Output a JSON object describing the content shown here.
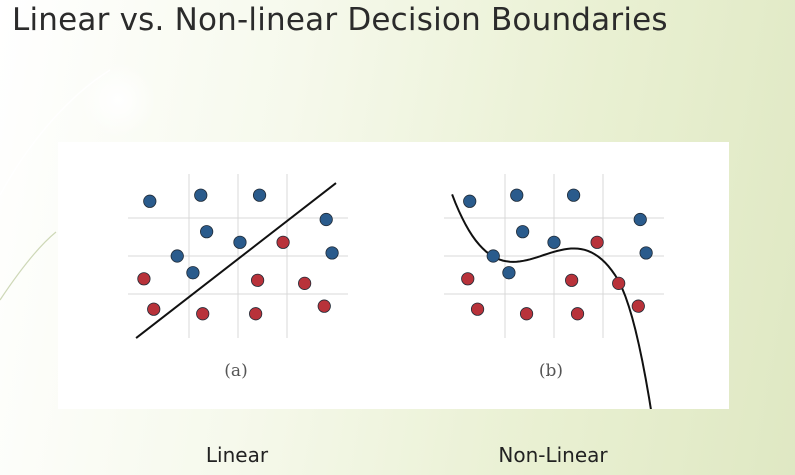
{
  "title": "Linear vs. Non-linear Decision Boundaries",
  "panels": [
    {
      "caption": "(a)",
      "label": "Linear",
      "boundary": "linear",
      "points": [
        {
          "x": 0.05,
          "y": 0.86,
          "cls": "blue"
        },
        {
          "x": 0.31,
          "y": 0.9,
          "cls": "blue"
        },
        {
          "x": 0.61,
          "y": 0.9,
          "cls": "blue"
        },
        {
          "x": 0.95,
          "y": 0.74,
          "cls": "blue"
        },
        {
          "x": 0.34,
          "y": 0.66,
          "cls": "blue"
        },
        {
          "x": 0.51,
          "y": 0.59,
          "cls": "blue"
        },
        {
          "x": 0.19,
          "y": 0.5,
          "cls": "blue"
        },
        {
          "x": 0.27,
          "y": 0.39,
          "cls": "blue"
        },
        {
          "x": 0.98,
          "y": 0.52,
          "cls": "blue"
        },
        {
          "x": 0.73,
          "y": 0.59,
          "cls": "red"
        },
        {
          "x": 0.02,
          "y": 0.35,
          "cls": "red"
        },
        {
          "x": 0.6,
          "y": 0.34,
          "cls": "red"
        },
        {
          "x": 0.84,
          "y": 0.32,
          "cls": "red"
        },
        {
          "x": 0.07,
          "y": 0.15,
          "cls": "red"
        },
        {
          "x": 0.32,
          "y": 0.12,
          "cls": "red"
        },
        {
          "x": 0.59,
          "y": 0.12,
          "cls": "red"
        },
        {
          "x": 0.94,
          "y": 0.17,
          "cls": "red"
        }
      ]
    },
    {
      "caption": "(b)",
      "label": "Non-Linear",
      "boundary": "nonlinear",
      "points": [
        {
          "x": 0.07,
          "y": 0.86,
          "cls": "blue"
        },
        {
          "x": 0.31,
          "y": 0.9,
          "cls": "blue"
        },
        {
          "x": 0.6,
          "y": 0.9,
          "cls": "blue"
        },
        {
          "x": 0.94,
          "y": 0.74,
          "cls": "blue"
        },
        {
          "x": 0.34,
          "y": 0.66,
          "cls": "blue"
        },
        {
          "x": 0.5,
          "y": 0.59,
          "cls": "blue"
        },
        {
          "x": 0.19,
          "y": 0.5,
          "cls": "blue"
        },
        {
          "x": 0.27,
          "y": 0.39,
          "cls": "blue"
        },
        {
          "x": 0.97,
          "y": 0.52,
          "cls": "blue"
        },
        {
          "x": 0.72,
          "y": 0.59,
          "cls": "red"
        },
        {
          "x": 0.06,
          "y": 0.35,
          "cls": "red"
        },
        {
          "x": 0.59,
          "y": 0.34,
          "cls": "red"
        },
        {
          "x": 0.83,
          "y": 0.32,
          "cls": "red"
        },
        {
          "x": 0.11,
          "y": 0.15,
          "cls": "red"
        },
        {
          "x": 0.36,
          "y": 0.12,
          "cls": "red"
        },
        {
          "x": 0.62,
          "y": 0.12,
          "cls": "red"
        },
        {
          "x": 0.93,
          "y": 0.17,
          "cls": "red"
        }
      ]
    }
  ],
  "colors": {
    "blue": "#2a5b8c",
    "red": "#b8323a",
    "grid": "#d8d8d8",
    "line": "#111111",
    "outline": "#1f2a36"
  }
}
